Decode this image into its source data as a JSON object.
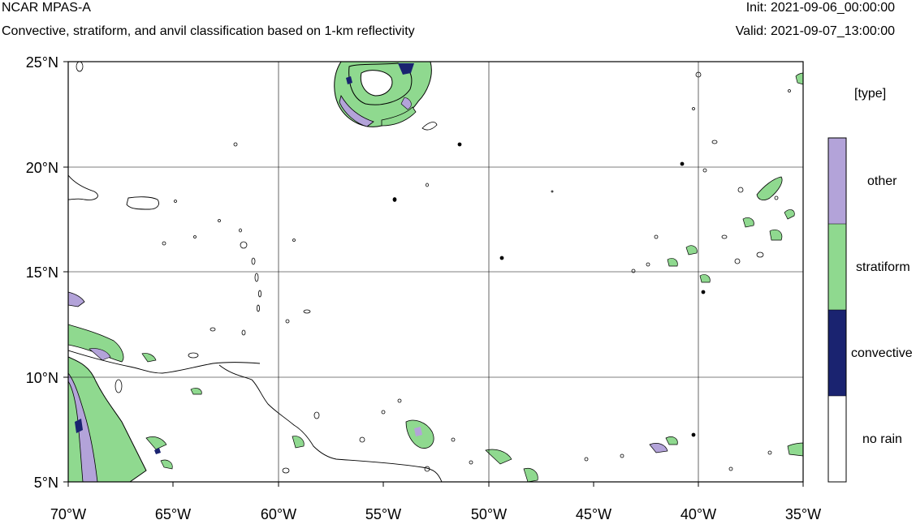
{
  "header": {
    "title": "NCAR MPAS-A",
    "subtitle": "Convective, stratiform, and anvil classification based on 1-km reflectivity",
    "init": "Init: 2021-09-06_00:00:00",
    "valid": "Valid: 2021-09-07_13:00:00"
  },
  "map": {
    "lon_range": [
      -70,
      -35
    ],
    "lat_range": [
      5,
      25
    ],
    "grid": true,
    "x_ticks": [
      "70°W",
      "65°W",
      "60°W",
      "55°W",
      "50°W",
      "45°W",
      "40°W",
      "35°W"
    ],
    "y_ticks": [
      "25°N",
      "20°N",
      "15°N",
      "10°N",
      "5°N"
    ]
  },
  "legend": {
    "title": "[type]",
    "items": [
      {
        "label": "other",
        "color": "#b3a3d9"
      },
      {
        "label": "stratiform",
        "color": "#8fd98f"
      },
      {
        "label": "convective",
        "color": "#1a2370"
      },
      {
        "label": "no rain",
        "color": "#ffffff"
      }
    ]
  },
  "colors": {
    "other": "#b3a3d9",
    "stratiform": "#8fd98f",
    "convective": "#1a2370",
    "coast": "#000000"
  }
}
